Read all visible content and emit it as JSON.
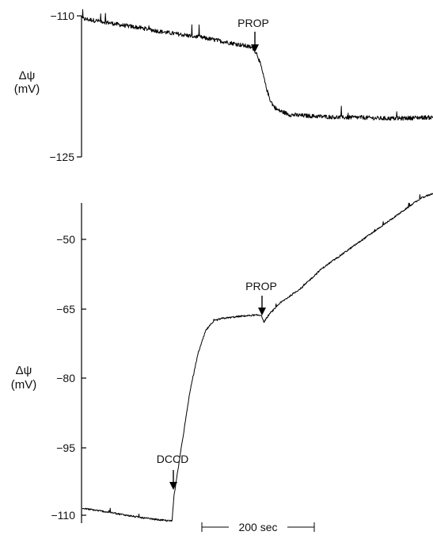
{
  "chart_data": [
    {
      "type": "line",
      "panel": "top",
      "ylabel": [
        "Δψ",
        "(mV)"
      ],
      "ylim": [
        -125,
        -110
      ],
      "yticks": [
        -110,
        -125
      ],
      "ytick_labels": [
        "−110",
        "−125"
      ],
      "annotations": [
        {
          "text": "PROP",
          "x": 430
        }
      ],
      "series": [
        {
          "x": [
            0,
            50,
            100,
            150,
            200,
            250,
            300,
            350,
            400,
            420,
            430,
            440,
            450,
            460,
            470,
            480,
            490,
            520,
            550,
            600,
            650,
            700,
            750,
            800,
            850,
            880
          ],
          "y": [
            -110.3,
            -110.6,
            -111.0,
            -111.3,
            -111.7,
            -112.0,
            -112.3,
            -112.7,
            -113.1,
            -113.3,
            -113.5,
            -114.2,
            -115.6,
            -117.4,
            -118.8,
            -119.6,
            -120.0,
            -120.5,
            -120.6,
            -120.7,
            -120.8,
            -120.8,
            -120.9,
            -120.9,
            -120.8,
            -120.8
          ]
        }
      ]
    },
    {
      "type": "line",
      "panel": "bottom",
      "ylabel": [
        "Δψ",
        "(mV)"
      ],
      "ylim": [
        -112,
        -41
      ],
      "yticks": [
        -50,
        -65,
        -80,
        -95,
        -110
      ],
      "ytick_labels": [
        "−50",
        "−65",
        "−80",
        "−95",
        "−110"
      ],
      "annotations": [
        {
          "text": "DCCD",
          "x": 225
        },
        {
          "text": "PROP",
          "x": 450
        }
      ],
      "scale_bar_label": "200 sec",
      "series": [
        {
          "x": [
            0,
            50,
            100,
            150,
            200,
            225,
            230,
            250,
            270,
            290,
            310,
            330,
            350,
            380,
            400,
            430,
            450,
            455,
            470,
            500,
            550,
            600,
            650,
            700,
            750,
            800,
            850,
            880
          ],
          "y": [
            -108.7,
            -109.3,
            -110.0,
            -110.7,
            -111.2,
            -111.4,
            -106.0,
            -95.0,
            -84.0,
            -76.0,
            -71.0,
            -69.0,
            -68.5,
            -68.2,
            -68.0,
            -67.8,
            -67.8,
            -69.3,
            -67.5,
            -65.0,
            -62.0,
            -58.0,
            -55.0,
            -52.0,
            -49.0,
            -46.0,
            -43.0,
            -42.0
          ]
        }
      ]
    }
  ]
}
